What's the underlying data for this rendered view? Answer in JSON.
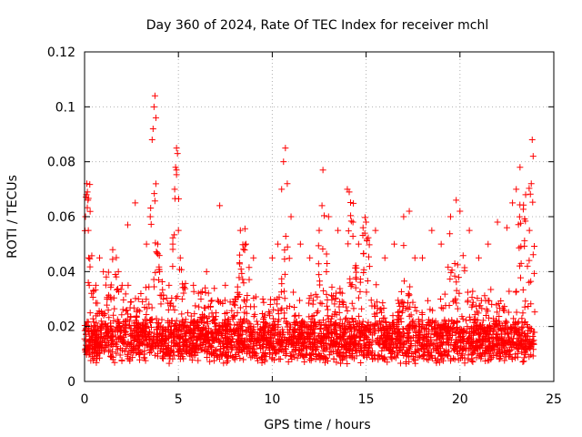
{
  "chart_data": {
    "type": "scatter",
    "title": "Day 360 of 2024, Rate Of TEC Index for receiver mchl",
    "xlabel": "GPS time / hours",
    "ylabel": "ROTI / TECUs",
    "xlim": [
      0,
      25
    ],
    "ylim": [
      0,
      0.12
    ],
    "x_ticks": [
      "0",
      "5",
      "10",
      "15",
      "20",
      "25"
    ],
    "y_ticks": [
      "0",
      "0.02",
      "0.04",
      "0.06",
      "0.08",
      "0.1",
      "0.12"
    ],
    "grid": true,
    "marker": "+",
    "series_color": "#ff0000",
    "series": [
      {
        "name": "ROTI",
        "x": [
          0.05,
          0.1,
          0.12,
          0.15,
          0.18,
          0.2,
          0.22,
          0.25,
          0.3,
          0.35,
          0.4,
          0.5,
          0.6,
          0.8,
          1.0,
          1.2,
          1.5,
          1.8,
          2.0,
          2.3,
          2.7,
          3.0,
          3.3,
          3.5,
          3.6,
          3.65,
          3.7,
          3.75,
          3.8,
          3.9,
          4.0,
          4.2,
          4.5,
          4.7,
          4.8,
          4.85,
          4.9,
          4.95,
          5.0,
          5.1,
          5.2,
          5.5,
          5.8,
          6.2,
          6.5,
          7.0,
          7.2,
          7.5,
          8.0,
          8.3,
          8.6,
          9.0,
          9.5,
          10.0,
          10.3,
          10.5,
          10.6,
          10.7,
          10.8,
          11.0,
          11.5,
          12.0,
          12.5,
          12.7,
          13.0,
          13.5,
          14.0,
          14.1,
          14.3,
          14.6,
          15.0,
          15.5,
          16.0,
          16.5,
          17.0,
          17.3,
          17.6,
          18.0,
          18.5,
          19.0,
          19.5,
          19.8,
          20.0,
          20.5,
          21.0,
          21.5,
          22.0,
          22.5,
          22.8,
          23.0,
          23.2,
          23.5,
          23.7,
          23.8,
          23.85,
          23.9
        ],
        "y": [
          0.06,
          0.068,
          0.072,
          0.069,
          0.066,
          0.055,
          0.045,
          0.035,
          0.025,
          0.02,
          0.015,
          0.018,
          0.035,
          0.045,
          0.04,
          0.03,
          0.048,
          0.04,
          0.035,
          0.057,
          0.065,
          0.032,
          0.05,
          0.06,
          0.088,
          0.092,
          0.1,
          0.104,
          0.096,
          0.05,
          0.04,
          0.03,
          0.035,
          0.05,
          0.07,
          0.078,
          0.085,
          0.083,
          0.055,
          0.045,
          0.03,
          0.025,
          0.035,
          0.03,
          0.04,
          0.025,
          0.064,
          0.035,
          0.03,
          0.055,
          0.05,
          0.045,
          0.03,
          0.045,
          0.05,
          0.07,
          0.08,
          0.085,
          0.072,
          0.06,
          0.05,
          0.045,
          0.055,
          0.077,
          0.06,
          0.055,
          0.07,
          0.069,
          0.058,
          0.05,
          0.058,
          0.055,
          0.045,
          0.05,
          0.06,
          0.062,
          0.045,
          0.045,
          0.055,
          0.05,
          0.06,
          0.066,
          0.062,
          0.055,
          0.045,
          0.05,
          0.058,
          0.056,
          0.065,
          0.07,
          0.078,
          0.068,
          0.055,
          0.072,
          0.088,
          0.082
        ]
      }
    ]
  }
}
